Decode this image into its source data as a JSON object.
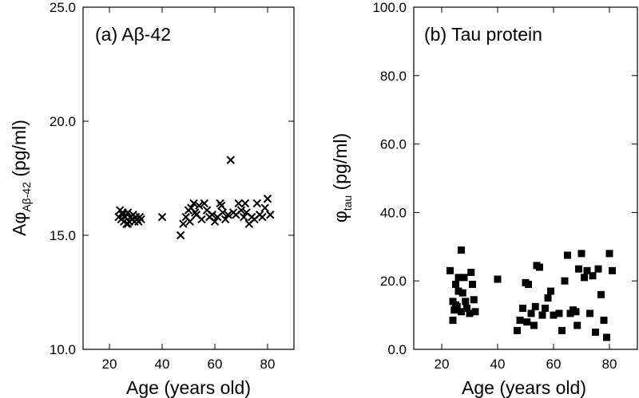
{
  "chart_data": [
    {
      "type": "scatter",
      "panel_label": "(a) Aβ-42",
      "xlabel": "Age (years old)",
      "ylabel": {
        "prefix": "Aφ",
        "sub": "Aβ-42",
        "suffix": " (pg/ml)"
      },
      "xlim": [
        10,
        90
      ],
      "ylim": [
        10.0,
        25.0
      ],
      "xticks": [
        20,
        40,
        60,
        80
      ],
      "yticks": [
        10.0,
        15.0,
        20.0,
        25.0
      ],
      "xtick_labels": [
        "20",
        "40",
        "60",
        "80"
      ],
      "ytick_labels": [
        "10.0",
        "15.0",
        "20.0",
        "25.0"
      ],
      "marker": "x",
      "color": "#000000",
      "points": [
        [
          23.5,
          15.8
        ],
        [
          24,
          16.1
        ],
        [
          24.5,
          15.7
        ],
        [
          25,
          15.9
        ],
        [
          25.5,
          15.6
        ],
        [
          26,
          15.8
        ],
        [
          26.5,
          15.5
        ],
        [
          27,
          16.0
        ],
        [
          27.5,
          15.6
        ],
        [
          28,
          15.8
        ],
        [
          28.5,
          15.7
        ],
        [
          29,
          15.9
        ],
        [
          29.5,
          15.6
        ],
        [
          30,
          15.8
        ],
        [
          30.5,
          15.7
        ],
        [
          31,
          15.6
        ],
        [
          31.5,
          15.8
        ],
        [
          32,
          15.7
        ],
        [
          27,
          15.5
        ],
        [
          25,
          16.0
        ],
        [
          40,
          15.8
        ],
        [
          47,
          15.0
        ],
        [
          48,
          15.5
        ],
        [
          49,
          15.8
        ],
        [
          50,
          16.1
        ],
        [
          50.5,
          15.6
        ],
        [
          51,
          16.2
        ],
        [
          52,
          16.4
        ],
        [
          52.5,
          16.0
        ],
        [
          53,
          15.9
        ],
        [
          54,
          16.3
        ],
        [
          55,
          15.7
        ],
        [
          56,
          16.4
        ],
        [
          57,
          16.1
        ],
        [
          58,
          15.8
        ],
        [
          59,
          15.9
        ],
        [
          60,
          15.6
        ],
        [
          61,
          15.8
        ],
        [
          62,
          16.4
        ],
        [
          62.5,
          16.3
        ],
        [
          63,
          16.0
        ],
        [
          64,
          15.7
        ],
        [
          65,
          15.9
        ],
        [
          66,
          18.3
        ],
        [
          67,
          16.0
        ],
        [
          68,
          15.9
        ],
        [
          69,
          16.4
        ],
        [
          70,
          16.1
        ],
        [
          71,
          15.8
        ],
        [
          71.5,
          16.4
        ],
        [
          72,
          16.0
        ],
        [
          73,
          15.5
        ],
        [
          74,
          15.8
        ],
        [
          75,
          15.7
        ],
        [
          76,
          16.4
        ],
        [
          77,
          15.9
        ],
        [
          78,
          15.8
        ],
        [
          79,
          16.2
        ],
        [
          80,
          16.6
        ],
        [
          81,
          15.9
        ]
      ]
    },
    {
      "type": "scatter",
      "panel_label": "(b) Tau protein",
      "xlabel": "Age (years old)",
      "ylabel": {
        "prefix": "φ",
        "sub": "tau",
        "suffix": " (pg/ml)"
      },
      "xlim": [
        10,
        90
      ],
      "ylim": [
        0.0,
        100.0
      ],
      "xticks": [
        20,
        40,
        60,
        80
      ],
      "yticks": [
        0.0,
        20.0,
        40.0,
        60.0,
        80.0,
        100.0
      ],
      "xtick_labels": [
        "20",
        "40",
        "60",
        "80"
      ],
      "ytick_labels": [
        "0.0",
        "20.0",
        "40.0",
        "60.0",
        "80.0",
        "100.0"
      ],
      "marker": "square",
      "color": "#000000",
      "points": [
        [
          23,
          23.0
        ],
        [
          24,
          14.0
        ],
        [
          24,
          8.5
        ],
        [
          24.5,
          11.5
        ],
        [
          25,
          19.0
        ],
        [
          25.5,
          12.5
        ],
        [
          26,
          21.0
        ],
        [
          26,
          17.0
        ],
        [
          27,
          29.0
        ],
        [
          27,
          11.0
        ],
        [
          27.5,
          16.5
        ],
        [
          28,
          21.0
        ],
        [
          28.5,
          14.0
        ],
        [
          29,
          12.0
        ],
        [
          30,
          10.5
        ],
        [
          30.5,
          22.5
        ],
        [
          31,
          19.0
        ],
        [
          31.5,
          14.5
        ],
        [
          32,
          11.0
        ],
        [
          25,
          13.0
        ],
        [
          40,
          20.5
        ],
        [
          47,
          5.5
        ],
        [
          48,
          8.5
        ],
        [
          49,
          12.0
        ],
        [
          50,
          19.5
        ],
        [
          50.5,
          8.0
        ],
        [
          51,
          19.0
        ],
        [
          52,
          10.5
        ],
        [
          53,
          7.0
        ],
        [
          53.5,
          12.5
        ],
        [
          54,
          24.5
        ],
        [
          55,
          24.0
        ],
        [
          56,
          10.0
        ],
        [
          57,
          12.0
        ],
        [
          58,
          15.0
        ],
        [
          59,
          17.0
        ],
        [
          60,
          10.0
        ],
        [
          62,
          10.5
        ],
        [
          63,
          5.5
        ],
        [
          64,
          20.0
        ],
        [
          65,
          27.5
        ],
        [
          66,
          10.5
        ],
        [
          67,
          11.5
        ],
        [
          68,
          11.0
        ],
        [
          68.5,
          7.0
        ],
        [
          69,
          23.5
        ],
        [
          70,
          28.0
        ],
        [
          71,
          21.0
        ],
        [
          72,
          23.0
        ],
        [
          73,
          10.5
        ],
        [
          74,
          21.5
        ],
        [
          75,
          5.0
        ],
        [
          76,
          23.5
        ],
        [
          77,
          16.0
        ],
        [
          78,
          8.5
        ],
        [
          79,
          3.5
        ],
        [
          80,
          28.0
        ],
        [
          81,
          23.0
        ]
      ]
    }
  ]
}
